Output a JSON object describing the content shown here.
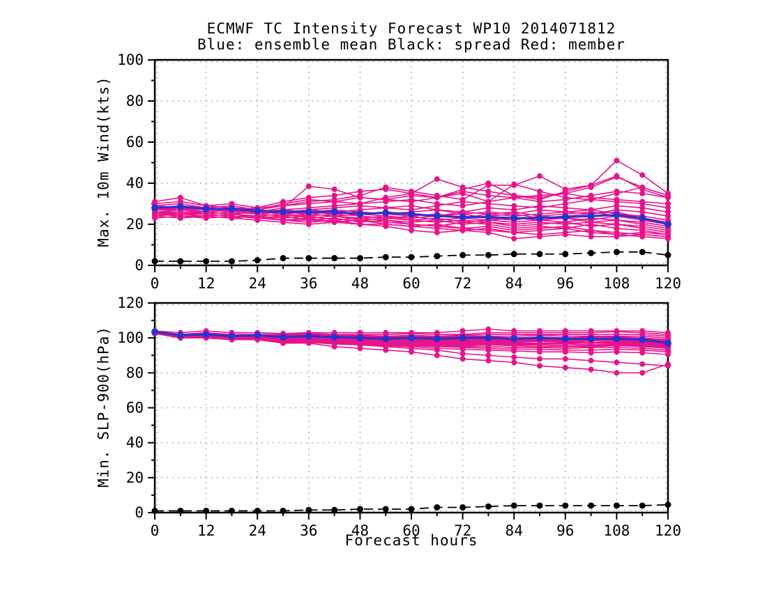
{
  "figure": {
    "title": "ECMWF TC Intensity Forecast WP10 2014071812",
    "subtitle": "Blue: ensemble mean Black: spread Red: member",
    "xlabel": "Forecast hours"
  },
  "colors": {
    "member": "#E6148C",
    "mean": "#2633D0",
    "spread": "#000000",
    "grid": "#B4B4B4",
    "frame": "#000000",
    "text": "#000000"
  },
  "chart_data": [
    {
      "type": "line",
      "panel_id": "wind",
      "ylabel": "Max. 10m Wind(kts)",
      "ylim": [
        0,
        100
      ],
      "yticks": [
        0,
        20,
        40,
        60,
        80,
        100
      ],
      "y_minor_step": 10,
      "xlim": [
        0,
        120
      ],
      "xticks": [
        0,
        12,
        24,
        36,
        48,
        60,
        72,
        84,
        96,
        108,
        120
      ],
      "x_minor_step": 6,
      "grid": true,
      "x": [
        0,
        6,
        12,
        18,
        24,
        30,
        36,
        42,
        48,
        54,
        60,
        66,
        72,
        78,
        84,
        90,
        96,
        102,
        108,
        114,
        120
      ],
      "mean": [
        28,
        28.5,
        27.5,
        27.5,
        26.5,
        26,
        26,
        26,
        25,
        25.5,
        25,
        24,
        23.5,
        23.5,
        23,
        23,
        23.5,
        24,
        24.5,
        23,
        20
      ],
      "spread": [
        2,
        2,
        2,
        2,
        2.5,
        3.5,
        3.5,
        3.5,
        3.5,
        4,
        4,
        4.5,
        5,
        5,
        5.5,
        5.5,
        5.5,
        6,
        6.5,
        6.5,
        5
      ],
      "members": [
        [
          30,
          31,
          29,
          30,
          28,
          31,
          33,
          34,
          36,
          37,
          35,
          42,
          38,
          36,
          34,
          33,
          35,
          38,
          43,
          38,
          34
        ],
        [
          29,
          30,
          28,
          29,
          27,
          29,
          31,
          32,
          34,
          38,
          36,
          34,
          32,
          39,
          39,
          43.5,
          37,
          39,
          51,
          44,
          35
        ],
        [
          28,
          29,
          27,
          28,
          26,
          28,
          38.5,
          37,
          33,
          32,
          31,
          33,
          36,
          34,
          33,
          31,
          32,
          34,
          36,
          35,
          33
        ],
        [
          31,
          33,
          29,
          28,
          27,
          30,
          32,
          31,
          30,
          33,
          35,
          33,
          37,
          40,
          34,
          32,
          36,
          39,
          43.5,
          37,
          33
        ],
        [
          27,
          28,
          26,
          27,
          28,
          29,
          30,
          31,
          33,
          32,
          34,
          33,
          35,
          31,
          39.5,
          36,
          33,
          32,
          35,
          38,
          34
        ],
        [
          28,
          29,
          28,
          27,
          26,
          27,
          28,
          29,
          30,
          31,
          32,
          30,
          29,
          31,
          33,
          34,
          35,
          33,
          32,
          31,
          30
        ],
        [
          29,
          28,
          27,
          28,
          27,
          26,
          27,
          28,
          29,
          28,
          27,
          29,
          31,
          30,
          29,
          28,
          30,
          32,
          31,
          30,
          28
        ],
        [
          27,
          27,
          28,
          26,
          25,
          26,
          27,
          26,
          27,
          28,
          29,
          27,
          26,
          28,
          27,
          29,
          28,
          27,
          29,
          28,
          26
        ],
        [
          26,
          27,
          26,
          27,
          26,
          27,
          26,
          25,
          26,
          25,
          26,
          27,
          25,
          26,
          25,
          27,
          26,
          25,
          27,
          26,
          24
        ],
        [
          28,
          28,
          27,
          26,
          27,
          26,
          25,
          26,
          25,
          26,
          25,
          24,
          26,
          25,
          24,
          25,
          26,
          27,
          25,
          24,
          22
        ],
        [
          27,
          28,
          28,
          27,
          26,
          25,
          26,
          27,
          26,
          25,
          24,
          25,
          23,
          24,
          25,
          23,
          24,
          25,
          26,
          23,
          21
        ],
        [
          26,
          26,
          25,
          26,
          25,
          26,
          25,
          24,
          25,
          24,
          23,
          24,
          25,
          23,
          22,
          24,
          23,
          22,
          24,
          22,
          20
        ],
        [
          25,
          26,
          26,
          25,
          26,
          25,
          24,
          25,
          24,
          23,
          24,
          22,
          23,
          22,
          23,
          22,
          21,
          23,
          22,
          21,
          19
        ],
        [
          28,
          27,
          26,
          27,
          25,
          24,
          25,
          24,
          23,
          24,
          22,
          23,
          21,
          22,
          21,
          22,
          23,
          21,
          22,
          20,
          18
        ],
        [
          26,
          25,
          26,
          25,
          24,
          25,
          23,
          24,
          22,
          23,
          22,
          21,
          22,
          21,
          20,
          21,
          20,
          21,
          20,
          19,
          17
        ],
        [
          25,
          25,
          24,
          25,
          24,
          23,
          24,
          22,
          23,
          22,
          21,
          22,
          20,
          21,
          19,
          20,
          21,
          19,
          20,
          18,
          16
        ],
        [
          24,
          25,
          25,
          24,
          23,
          24,
          22,
          23,
          21,
          22,
          20,
          19,
          21,
          20,
          18,
          19,
          18,
          20,
          18,
          17,
          15
        ],
        [
          25,
          24,
          24,
          23,
          24,
          22,
          23,
          21,
          22,
          20,
          19,
          20,
          18,
          19,
          17,
          18,
          19,
          17,
          16,
          15,
          14
        ],
        [
          24,
          23,
          24,
          23,
          22,
          21,
          20,
          21,
          22,
          21,
          20,
          19,
          18,
          17,
          16,
          17,
          18,
          16,
          15,
          16,
          15
        ],
        [
          26,
          25,
          25,
          24,
          23,
          22,
          22,
          21,
          20,
          20,
          19,
          18,
          17,
          16,
          13,
          14,
          15,
          14,
          14,
          15,
          14
        ],
        [
          25,
          24,
          24,
          25,
          23,
          22,
          21,
          22,
          20,
          19,
          17,
          16,
          17,
          18,
          16,
          15,
          16,
          17,
          15,
          14,
          13
        ],
        [
          23,
          24,
          23,
          24,
          23,
          24,
          25,
          24,
          25,
          26,
          25,
          24,
          23,
          25,
          26,
          24,
          25,
          26,
          24,
          22,
          20
        ]
      ]
    },
    {
      "type": "line",
      "panel_id": "slp",
      "ylabel": "Min. SLP-900(hPa)",
      "ylim": [
        0,
        120
      ],
      "yticks": [
        0,
        20,
        40,
        60,
        80,
        100,
        120
      ],
      "y_minor_step": 10,
      "xlim": [
        0,
        120
      ],
      "xticks": [
        0,
        12,
        24,
        36,
        48,
        60,
        72,
        84,
        96,
        108,
        120
      ],
      "x_minor_step": 6,
      "grid": true,
      "x": [
        0,
        6,
        12,
        18,
        24,
        30,
        36,
        42,
        48,
        54,
        60,
        66,
        72,
        78,
        84,
        90,
        96,
        102,
        108,
        114,
        120
      ],
      "mean": [
        103.5,
        101.5,
        102,
        101,
        101.5,
        100.5,
        101,
        100.5,
        100,
        99.5,
        100,
        99.5,
        100,
        100,
        99.5,
        100,
        99.5,
        99.5,
        99.5,
        99,
        97
      ],
      "spread": [
        1,
        1,
        1,
        1,
        1,
        1,
        1.5,
        1.5,
        2,
        2,
        2,
        3,
        3,
        3.5,
        4,
        4,
        4,
        4,
        4,
        4,
        4.5
      ],
      "members": [
        [
          104,
          103,
          104,
          103,
          103,
          102.5,
          103,
          103,
          103,
          103,
          103,
          103,
          104,
          105,
          104,
          104,
          104,
          104,
          104,
          104,
          103
        ],
        [
          104,
          102,
          103,
          102,
          102,
          102,
          102.5,
          102,
          102,
          102,
          102.5,
          102,
          102,
          103,
          103,
          103,
          103,
          103,
          103.5,
          103,
          102
        ],
        [
          103.5,
          102,
          102.5,
          101.5,
          102,
          101.5,
          102,
          101.5,
          101.5,
          101,
          101.5,
          101,
          101.5,
          102,
          102,
          102,
          102,
          102,
          102,
          102,
          101
        ],
        [
          103.5,
          101.5,
          102,
          101,
          101.5,
          101,
          101.5,
          101,
          101,
          100.5,
          101,
          100.5,
          101,
          101,
          101,
          101.5,
          101,
          101,
          101,
          101,
          100
        ],
        [
          103,
          101.5,
          102,
          101,
          101.5,
          100.5,
          101,
          100.5,
          100.5,
          100,
          100.5,
          100,
          100.5,
          100.5,
          100,
          100.5,
          100,
          100.5,
          100.5,
          100,
          99
        ],
        [
          103.5,
          102,
          102,
          101,
          101,
          100.5,
          101,
          100.5,
          100,
          100,
          100,
          99.5,
          100,
          100,
          100,
          100,
          100,
          99.5,
          100,
          99.5,
          98.5
        ],
        [
          103,
          101,
          101.5,
          100.5,
          101,
          100,
          100.5,
          100,
          100,
          99.5,
          100,
          99.5,
          99.5,
          100,
          99.5,
          100,
          99.5,
          99.5,
          99.5,
          99,
          98
        ],
        [
          103,
          101,
          101,
          100.5,
          100.5,
          100,
          100,
          99.5,
          99.5,
          99,
          99.5,
          99,
          99.5,
          99.5,
          99,
          99.5,
          99,
          99,
          99.5,
          99,
          98
        ],
        [
          103.5,
          101.5,
          101.5,
          100.5,
          101,
          100,
          100.5,
          99.5,
          99.5,
          99,
          99,
          98.5,
          99,
          99,
          98.5,
          99,
          98.5,
          98.5,
          99,
          98.5,
          97.5
        ],
        [
          103,
          101,
          101,
          100,
          100.5,
          99.5,
          100,
          99.5,
          99,
          98.5,
          99,
          98.5,
          98.5,
          99,
          98.5,
          98.5,
          98,
          98.5,
          98.5,
          98,
          97
        ],
        [
          103,
          101,
          101.5,
          100,
          100,
          99.5,
          99.5,
          99,
          99,
          98.5,
          98.5,
          98,
          98,
          98.5,
          98,
          98,
          98,
          97.5,
          98,
          97.5,
          96.5
        ],
        [
          103,
          101,
          101,
          100,
          100,
          99,
          99.5,
          99,
          98.5,
          98,
          98.5,
          98,
          97.5,
          98,
          97.5,
          98,
          97.5,
          97,
          97.5,
          97,
          96
        ],
        [
          102.5,
          100.5,
          101,
          99.5,
          100,
          99,
          99,
          98.5,
          98,
          97.5,
          98,
          97.5,
          97,
          97.5,
          97,
          97,
          97,
          97,
          97,
          96.5,
          95.5
        ],
        [
          103,
          100.5,
          100.5,
          99.5,
          99.5,
          98.5,
          99,
          98,
          98,
          97.5,
          97.5,
          97,
          96.5,
          97,
          96.5,
          96.5,
          96.5,
          96,
          96.5,
          96,
          95
        ],
        [
          102.5,
          100.5,
          100.5,
          99.5,
          99.5,
          98.5,
          98.5,
          98,
          97.5,
          97,
          97,
          96.5,
          96,
          96.5,
          96,
          96,
          95.5,
          95.5,
          96,
          95.5,
          94.5
        ],
        [
          103,
          100.5,
          101,
          99.5,
          99.5,
          98.5,
          98.5,
          97.5,
          97.5,
          97,
          96.5,
          96,
          95.5,
          96,
          95.5,
          95,
          95,
          95,
          95.5,
          95,
          94
        ],
        [
          102.5,
          100,
          100.5,
          99,
          99.5,
          98,
          98,
          97.5,
          97,
          96.5,
          96,
          95.5,
          95,
          95,
          94.5,
          94.5,
          94,
          94.5,
          94.5,
          94,
          93
        ],
        [
          102.5,
          100,
          100,
          99,
          99,
          98,
          97.5,
          97,
          96.5,
          96,
          95.5,
          95,
          94.5,
          94,
          93.5,
          93.5,
          93,
          93,
          93.5,
          93,
          92
        ],
        [
          103,
          100.5,
          100.5,
          99,
          99,
          97.5,
          97.5,
          96.5,
          96,
          95.5,
          95,
          94,
          93.5,
          93,
          92.5,
          92,
          92,
          91.5,
          92,
          91.5,
          90.5
        ],
        [
          103,
          101,
          100,
          99,
          100,
          98,
          98,
          97,
          96,
          95,
          94,
          93,
          91,
          90,
          89,
          88,
          88,
          87,
          86,
          85,
          84
        ],
        [
          103,
          100,
          101,
          99,
          99,
          97,
          97,
          95,
          94,
          93,
          92,
          90,
          88,
          87,
          86,
          84,
          83,
          82,
          80,
          80,
          85
        ],
        [
          103.5,
          101,
          101.5,
          100.5,
          100.5,
          99.5,
          99.5,
          99,
          98.5,
          98.5,
          98.5,
          98,
          98.5,
          99,
          98.5,
          99,
          98.5,
          98.5,
          99,
          98.5,
          97.5
        ]
      ]
    }
  ]
}
